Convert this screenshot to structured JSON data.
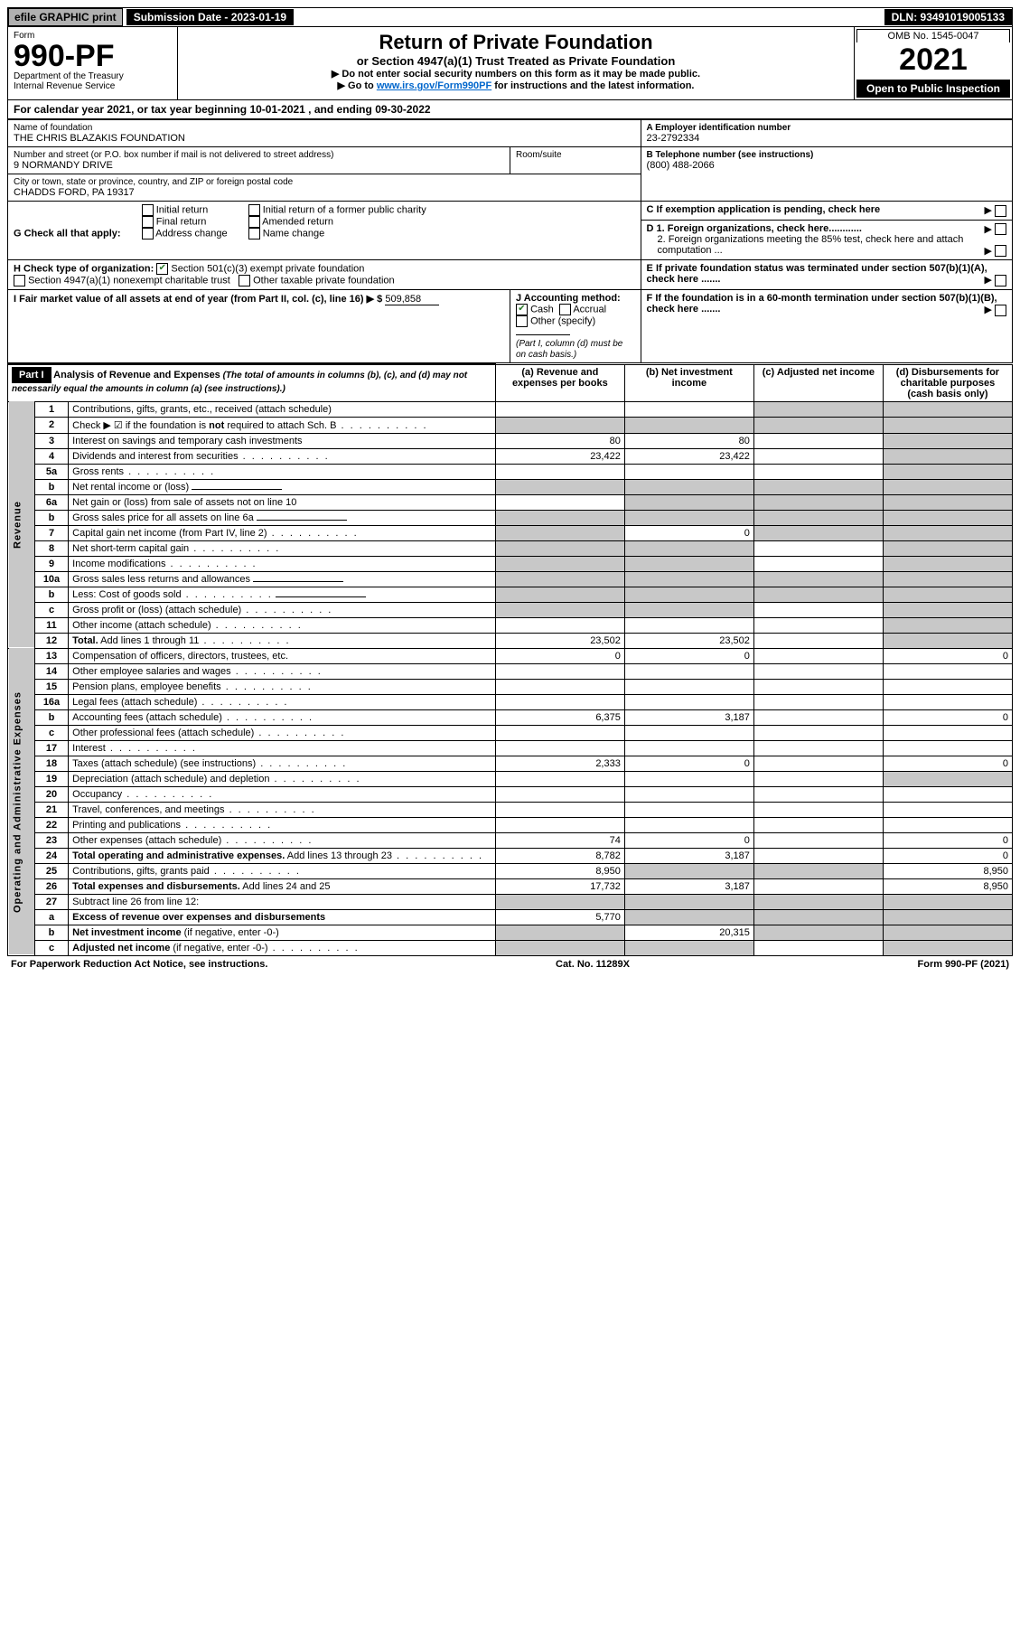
{
  "top": {
    "efile": "efile GRAPHIC print",
    "submission": "Submission Date - 2023-01-19",
    "dln": "DLN: 93491019005133"
  },
  "header": {
    "form_label": "Form",
    "form_number": "990-PF",
    "dept1": "Department of the Treasury",
    "dept2": "Internal Revenue Service",
    "title": "Return of Private Foundation",
    "subtitle": "or Section 4947(a)(1) Trust Treated as Private Foundation",
    "instr1": "▶ Do not enter social security numbers on this form as it may be made public.",
    "instr2_pre": "▶ Go to ",
    "instr2_link": "www.irs.gov/Form990PF",
    "instr2_post": " for instructions and the latest information.",
    "omb": "OMB No. 1545-0047",
    "year": "2021",
    "open": "Open to Public Inspection"
  },
  "calendar": {
    "text_pre": "For calendar year 2021, or tax year beginning ",
    "begin": "10-01-2021",
    "mid": " , and ending ",
    "end": "09-30-2022"
  },
  "info": {
    "name_label": "Name of foundation",
    "name": "THE CHRIS BLAZAKIS FOUNDATION",
    "ein_label": "A Employer identification number",
    "ein": "23-2792334",
    "addr_label": "Number and street (or P.O. box number if mail is not delivered to street address)",
    "addr": "9 NORMANDY DRIVE",
    "room_label": "Room/suite",
    "phone_label": "B Telephone number (see instructions)",
    "phone": "(800) 488-2066",
    "city_label": "City or town, state or province, country, and ZIP or foreign postal code",
    "city": "CHADDS FORD, PA  19317",
    "c_label": "C If exemption application is pending, check here",
    "g_label": "G Check all that apply:",
    "g_initial": "Initial return",
    "g_final": "Final return",
    "g_addr": "Address change",
    "g_initial_former": "Initial return of a former public charity",
    "g_amended": "Amended return",
    "g_name": "Name change",
    "d1": "D 1. Foreign organizations, check here............",
    "d2": "2. Foreign organizations meeting the 85% test, check here and attach computation ...",
    "h_label": "H Check type of organization:",
    "h_501c3": "Section 501(c)(3) exempt private foundation",
    "h_4947": "Section 4947(a)(1) nonexempt charitable trust",
    "h_other": "Other taxable private foundation",
    "e_label": "E If private foundation status was terminated under section 507(b)(1)(A), check here .......",
    "i_label": "I Fair market value of all assets at end of year (from Part II, col. (c), line 16) ▶ $",
    "i_value": "509,858",
    "j_label": "J Accounting method:",
    "j_cash": "Cash",
    "j_accrual": "Accrual",
    "j_other": "Other (specify)",
    "j_note": "(Part I, column (d) must be on cash basis.)",
    "f_label": "F If the foundation is in a 60-month termination under section 507(b)(1)(B), check here ......."
  },
  "part1": {
    "label": "Part I",
    "title": "Analysis of Revenue and Expenses",
    "title_note": " (The total of amounts in columns (b), (c), and (d) may not necessarily equal the amounts in column (a) (see instructions).)",
    "col_a": "(a) Revenue and expenses per books",
    "col_b": "(b) Net investment income",
    "col_c": "(c) Adjusted net income",
    "col_d": "(d) Disbursements for charitable purposes (cash basis only)"
  },
  "sidebar": {
    "revenue": "Revenue",
    "expenses": "Operating and Administrative Expenses"
  },
  "rows": [
    {
      "n": "1",
      "desc": "Contributions, gifts, grants, etc., received (attach schedule)",
      "a": "",
      "b": "",
      "c": "s",
      "d": "s"
    },
    {
      "n": "2",
      "desc": "Check ▶ ☑ if the foundation is <b>not</b> required to attach Sch. B",
      "dots": true,
      "a": "s",
      "b": "s",
      "c": "s",
      "d": "s"
    },
    {
      "n": "3",
      "desc": "Interest on savings and temporary cash investments",
      "a": "80",
      "b": "80",
      "c": "",
      "d": "s"
    },
    {
      "n": "4",
      "desc": "Dividends and interest from securities",
      "dots": true,
      "a": "23,422",
      "b": "23,422",
      "c": "",
      "d": "s"
    },
    {
      "n": "5a",
      "desc": "Gross rents",
      "dots": true,
      "a": "",
      "b": "",
      "c": "",
      "d": "s"
    },
    {
      "n": "b",
      "desc": "Net rental income or (loss)",
      "inline": true,
      "a": "s",
      "b": "s",
      "c": "s",
      "d": "s"
    },
    {
      "n": "6a",
      "desc": "Net gain or (loss) from sale of assets not on line 10",
      "a": "",
      "b": "s",
      "c": "s",
      "d": "s"
    },
    {
      "n": "b",
      "desc": "Gross sales price for all assets on line 6a",
      "inline": true,
      "a": "s",
      "b": "s",
      "c": "s",
      "d": "s"
    },
    {
      "n": "7",
      "desc": "Capital gain net income (from Part IV, line 2)",
      "dots": true,
      "a": "s",
      "b": "0",
      "c": "s",
      "d": "s"
    },
    {
      "n": "8",
      "desc": "Net short-term capital gain",
      "dots": true,
      "a": "s",
      "b": "s",
      "c": "",
      "d": "s"
    },
    {
      "n": "9",
      "desc": "Income modifications",
      "dots": true,
      "a": "s",
      "b": "s",
      "c": "",
      "d": "s"
    },
    {
      "n": "10a",
      "desc": "Gross sales less returns and allowances",
      "inline": true,
      "a": "s",
      "b": "s",
      "c": "s",
      "d": "s"
    },
    {
      "n": "b",
      "desc": "Less: Cost of goods sold",
      "dots": true,
      "inline": true,
      "a": "s",
      "b": "s",
      "c": "s",
      "d": "s"
    },
    {
      "n": "c",
      "desc": "Gross profit or (loss) (attach schedule)",
      "dots": true,
      "a": "s",
      "b": "s",
      "c": "",
      "d": "s"
    },
    {
      "n": "11",
      "desc": "Other income (attach schedule)",
      "dots": true,
      "a": "",
      "b": "",
      "c": "",
      "d": "s"
    },
    {
      "n": "12",
      "desc": "<b>Total.</b> Add lines 1 through 11",
      "dots": true,
      "a": "23,502",
      "b": "23,502",
      "c": "",
      "d": "s"
    },
    {
      "n": "13",
      "desc": "Compensation of officers, directors, trustees, etc.",
      "a": "0",
      "b": "0",
      "c": "",
      "d": "0"
    },
    {
      "n": "14",
      "desc": "Other employee salaries and wages",
      "dots": true,
      "a": "",
      "b": "",
      "c": "",
      "d": ""
    },
    {
      "n": "15",
      "desc": "Pension plans, employee benefits",
      "dots": true,
      "a": "",
      "b": "",
      "c": "",
      "d": ""
    },
    {
      "n": "16a",
      "desc": "Legal fees (attach schedule)",
      "dots": true,
      "a": "",
      "b": "",
      "c": "",
      "d": ""
    },
    {
      "n": "b",
      "desc": "Accounting fees (attach schedule)",
      "dots": true,
      "a": "6,375",
      "b": "3,187",
      "c": "",
      "d": "0"
    },
    {
      "n": "c",
      "desc": "Other professional fees (attach schedule)",
      "dots": true,
      "a": "",
      "b": "",
      "c": "",
      "d": ""
    },
    {
      "n": "17",
      "desc": "Interest",
      "dots": true,
      "a": "",
      "b": "",
      "c": "",
      "d": ""
    },
    {
      "n": "18",
      "desc": "Taxes (attach schedule) (see instructions)",
      "dots": true,
      "a": "2,333",
      "b": "0",
      "c": "",
      "d": "0"
    },
    {
      "n": "19",
      "desc": "Depreciation (attach schedule) and depletion",
      "dots": true,
      "a": "",
      "b": "",
      "c": "",
      "d": "s"
    },
    {
      "n": "20",
      "desc": "Occupancy",
      "dots": true,
      "a": "",
      "b": "",
      "c": "",
      "d": ""
    },
    {
      "n": "21",
      "desc": "Travel, conferences, and meetings",
      "dots": true,
      "a": "",
      "b": "",
      "c": "",
      "d": ""
    },
    {
      "n": "22",
      "desc": "Printing and publications",
      "dots": true,
      "a": "",
      "b": "",
      "c": "",
      "d": ""
    },
    {
      "n": "23",
      "desc": "Other expenses (attach schedule)",
      "dots": true,
      "a": "74",
      "b": "0",
      "c": "",
      "d": "0"
    },
    {
      "n": "24",
      "desc": "<b>Total operating and administrative expenses.</b> Add lines 13 through 23",
      "dots": true,
      "a": "8,782",
      "b": "3,187",
      "c": "",
      "d": "0"
    },
    {
      "n": "25",
      "desc": "Contributions, gifts, grants paid",
      "dots": true,
      "a": "8,950",
      "b": "s",
      "c": "s",
      "d": "8,950"
    },
    {
      "n": "26",
      "desc": "<b>Total expenses and disbursements.</b> Add lines 24 and 25",
      "a": "17,732",
      "b": "3,187",
      "c": "",
      "d": "8,950"
    },
    {
      "n": "27",
      "desc": "Subtract line 26 from line 12:",
      "a": "s",
      "b": "s",
      "c": "s",
      "d": "s"
    },
    {
      "n": "a",
      "desc": "<b>Excess of revenue over expenses and disbursements</b>",
      "a": "5,770",
      "b": "s",
      "c": "s",
      "d": "s"
    },
    {
      "n": "b",
      "desc": "<b>Net investment income</b> (if negative, enter -0-)",
      "a": "s",
      "b": "20,315",
      "c": "s",
      "d": "s"
    },
    {
      "n": "c",
      "desc": "<b>Adjusted net income</b> (if negative, enter -0-)",
      "dots": true,
      "a": "s",
      "b": "s",
      "c": "",
      "d": "s"
    }
  ],
  "footer": {
    "left": "For Paperwork Reduction Act Notice, see instructions.",
    "mid": "Cat. No. 11289X",
    "right": "Form 990-PF (2021)"
  }
}
